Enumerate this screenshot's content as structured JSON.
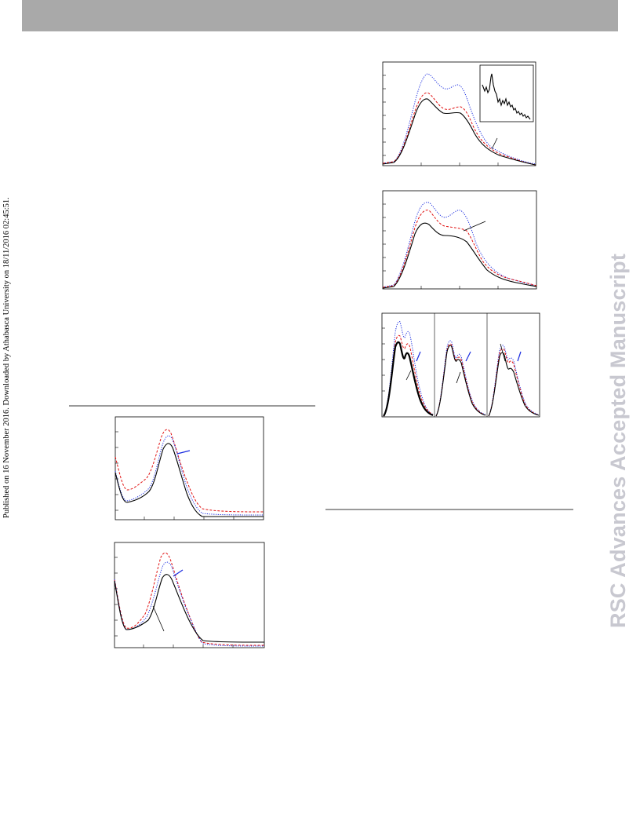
{
  "side_note": "Published on 16 November 2016. Downloaded by Athabasca University on 18/11/2016 02:45:51.",
  "watermark": "RSC Advances Accepted Manuscript",
  "colors": {
    "banner": "#a9a9a9",
    "rule": "#9a9a9a",
    "black_series": "#000000",
    "red_series": "#e01010",
    "blue_series": "#1a2ce0",
    "watermark": "#c8c8d0"
  }
}
